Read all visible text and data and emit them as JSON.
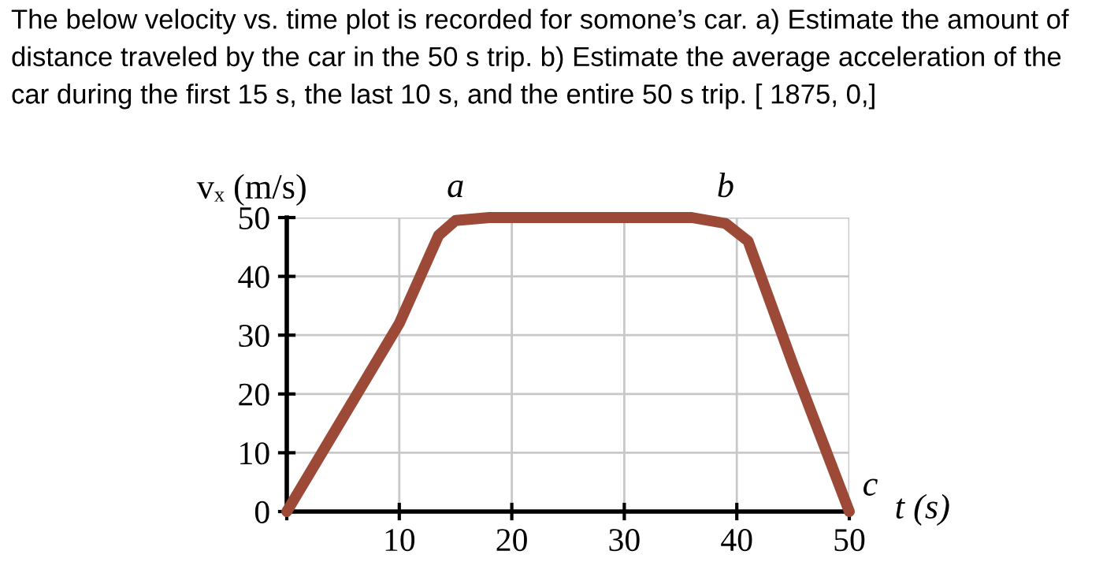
{
  "chart_data": {
    "type": "line",
    "title": "The below velocity vs. time plot is recorded for somone’s car. a) Estimate the amount of distance traveled by the car in the 50 s trip. b) Estimate the average acceleration of the car during the first 15 s, the last 10 s, and the entire 50 s trip. [ 1875, 0,]",
    "xlabel": "t (s)",
    "ylabel": "vₓ (m/s)",
    "x": [
      0,
      5,
      10,
      13.5,
      15,
      18,
      36,
      39,
      41,
      45,
      50
    ],
    "series": [
      {
        "color": "#9c4a37",
        "values": [
          0,
          16,
          32,
          47,
          49.5,
          50,
          50,
          49,
          46,
          25,
          0
        ]
      }
    ],
    "annotations": [
      {
        "text": "a",
        "x": 15,
        "y": 50
      },
      {
        "text": "b",
        "x": 39,
        "y": 50
      },
      {
        "text": "c",
        "x": 50,
        "y": 0
      }
    ],
    "xlim": [
      0,
      50
    ],
    "ylim": [
      0,
      50
    ],
    "xticks": [
      {
        "value": 0,
        "label": null
      },
      10,
      20,
      30,
      40,
      50
    ],
    "yticks": [
      {
        "value": 0,
        "label": "0"
      },
      10,
      20,
      30,
      40,
      50
    ],
    "grid": true,
    "marker": "none",
    "line_style": "solid"
  }
}
